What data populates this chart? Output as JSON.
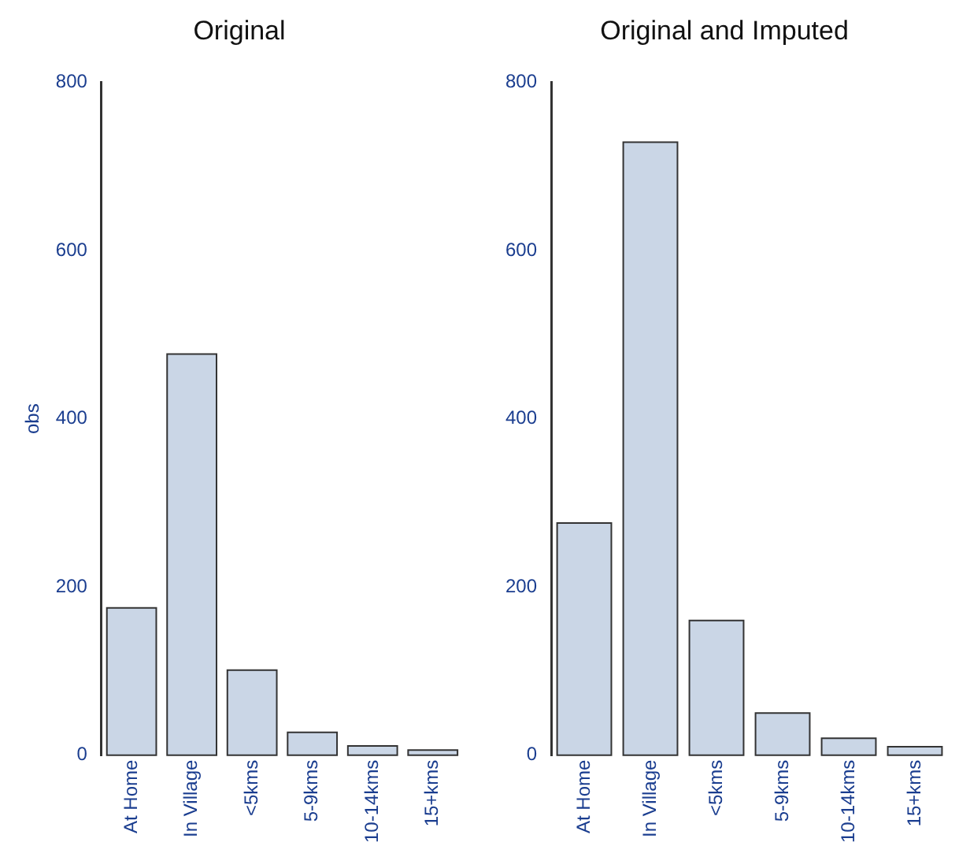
{
  "chart_data": [
    {
      "type": "bar",
      "title": "Original",
      "ylabel": "obs",
      "categories": [
        "At Home",
        "In Village",
        "<5kms",
        "5-9kms",
        "10-14kms",
        "15+kms"
      ],
      "values": [
        175,
        477,
        101,
        27,
        11,
        6
      ],
      "color": "#cad6e6",
      "ylim": [
        0,
        800
      ],
      "yticks": [
        0,
        200,
        400,
        600,
        800
      ],
      "grid": false,
      "legend": false
    },
    {
      "type": "bar",
      "title": "Original and Imputed",
      "categories": [
        "At Home",
        "In Village",
        "<5kms",
        "5-9kms",
        "10-14kms",
        "15+kms"
      ],
      "values": [
        276,
        729,
        160,
        50,
        20,
        10
      ],
      "color": "#cad6e6",
      "ylim": [
        0,
        800
      ],
      "yticks": [
        0,
        200,
        400,
        600,
        800
      ],
      "grid": false,
      "legend": false
    }
  ]
}
